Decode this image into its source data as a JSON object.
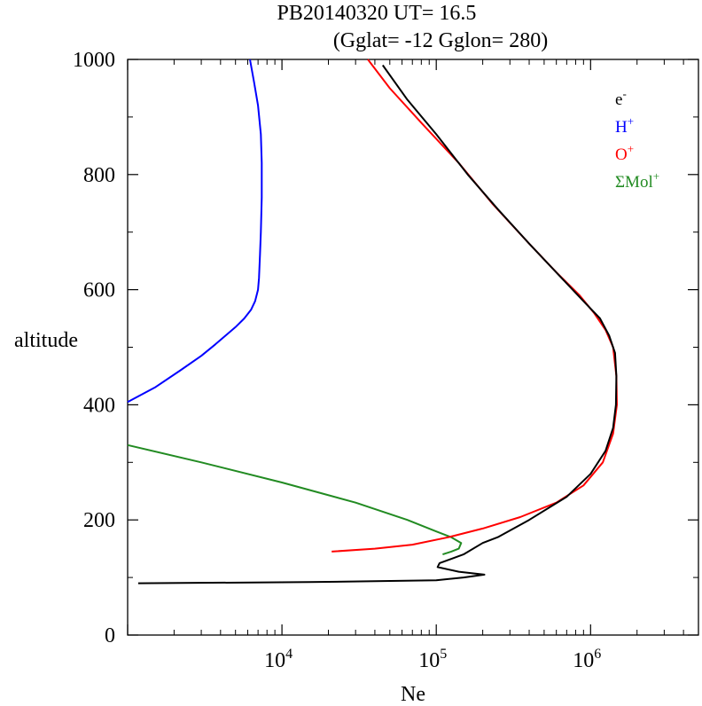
{
  "chart_data": {
    "type": "line",
    "title": "PB20140320   UT=  16.5",
    "subtitle": "(Gglat= -12   Gglon=  280)",
    "xlabel": "Ne",
    "ylabel": "altitude",
    "xscale": "log",
    "xlim": [
      1000,
      5000000
    ],
    "ylim": [
      0,
      1000
    ],
    "yticks": [
      {
        "value": 0,
        "label": "0"
      },
      {
        "value": 200,
        "label": "200"
      },
      {
        "value": 400,
        "label": "400"
      },
      {
        "value": 600,
        "label": "600"
      },
      {
        "value": 800,
        "label": "800"
      },
      {
        "value": 1000,
        "label": "1000"
      }
    ],
    "xticks": [
      {
        "value": 10000,
        "base": "10",
        "exp": "4"
      },
      {
        "value": 100000,
        "base": "10",
        "exp": "5"
      },
      {
        "value": 1000000,
        "base": "10",
        "exp": "6"
      }
    ],
    "legend_position": "top-right",
    "series": [
      {
        "name": "e",
        "sup": "-",
        "color": "#000000",
        "points": [
          [
            1170,
            90
          ],
          [
            15000,
            92
          ],
          [
            100000,
            95
          ],
          [
            150000,
            100
          ],
          [
            205000,
            105
          ],
          [
            140000,
            110
          ],
          [
            102000,
            118
          ],
          [
            105000,
            125
          ],
          [
            150000,
            140
          ],
          [
            200000,
            160
          ],
          [
            250000,
            170
          ],
          [
            400000,
            200
          ],
          [
            700000,
            240
          ],
          [
            1000000,
            280
          ],
          [
            1250000,
            320
          ],
          [
            1400000,
            360
          ],
          [
            1460000,
            400
          ],
          [
            1470000,
            450
          ],
          [
            1440000,
            490
          ],
          [
            1320000,
            520
          ],
          [
            1150000,
            550
          ],
          [
            900000,
            580
          ],
          [
            650000,
            620
          ],
          [
            400000,
            680
          ],
          [
            250000,
            740
          ],
          [
            160000,
            800
          ],
          [
            100000,
            870
          ],
          [
            65000,
            930
          ],
          [
            45000,
            990
          ]
        ]
      },
      {
        "name": "H",
        "sup": "+",
        "color": "#0000ff",
        "points": [
          [
            1000,
            405
          ],
          [
            1500,
            430
          ],
          [
            2200,
            460
          ],
          [
            3000,
            485
          ],
          [
            3700,
            505
          ],
          [
            4300,
            520
          ],
          [
            5000,
            535
          ],
          [
            5700,
            550
          ],
          [
            6300,
            565
          ],
          [
            6700,
            580
          ],
          [
            7000,
            600
          ],
          [
            7100,
            620
          ],
          [
            7200,
            660
          ],
          [
            7300,
            700
          ],
          [
            7400,
            760
          ],
          [
            7400,
            820
          ],
          [
            7300,
            870
          ],
          [
            7000,
            920
          ],
          [
            6600,
            960
          ],
          [
            6200,
            1000
          ]
        ]
      },
      {
        "name": "O",
        "sup": "+",
        "color": "#ff0000",
        "points": [
          [
            21000,
            145
          ],
          [
            40000,
            150
          ],
          [
            70000,
            157
          ],
          [
            120000,
            170
          ],
          [
            200000,
            185
          ],
          [
            350000,
            205
          ],
          [
            600000,
            230
          ],
          [
            900000,
            260
          ],
          [
            1200000,
            300
          ],
          [
            1400000,
            350
          ],
          [
            1480000,
            400
          ],
          [
            1470000,
            450
          ],
          [
            1400000,
            500
          ],
          [
            1250000,
            530
          ],
          [
            1050000,
            560
          ],
          [
            850000,
            590
          ],
          [
            600000,
            630
          ],
          [
            400000,
            680
          ],
          [
            230000,
            750
          ],
          [
            140000,
            820
          ],
          [
            80000,
            890
          ],
          [
            50000,
            950
          ],
          [
            36000,
            1000
          ]
        ]
      },
      {
        "name": "ΣMol",
        "sup": "+",
        "color": "#228b22",
        "points": [
          [
            1000,
            330
          ],
          [
            3000,
            300
          ],
          [
            10000,
            265
          ],
          [
            30000,
            230
          ],
          [
            65000,
            200
          ],
          [
            100000,
            180
          ],
          [
            125000,
            170
          ],
          [
            145000,
            160
          ],
          [
            140000,
            150
          ],
          [
            125000,
            145
          ],
          [
            110000,
            140
          ]
        ]
      }
    ]
  }
}
